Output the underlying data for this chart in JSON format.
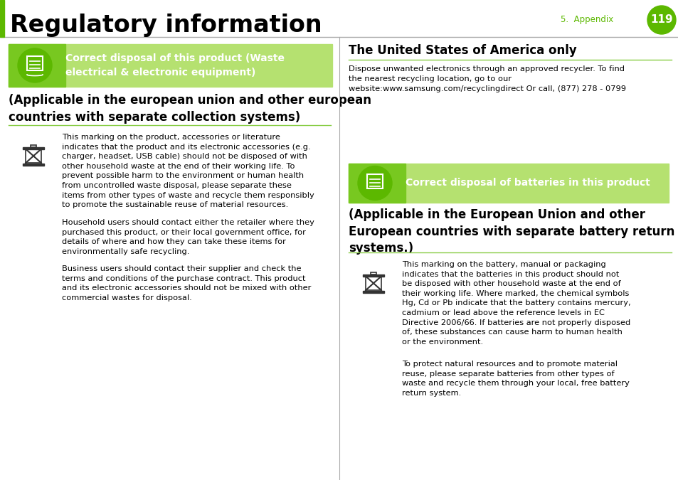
{
  "bg_color": "#ffffff",
  "green_dark": "#5cb800",
  "green_light": "#b5e170",
  "green_banner_grad_left": "#7dc832",
  "page_label": "5.  Appendix",
  "page_number": "119",
  "title": "Regulatory information",
  "left_banner_title": "Correct disposal of this product (Waste\nelectrical & electronic equipment)",
  "left_section_subtitle": "(Applicable in the european union and other european\ncountries with separate collection systems)",
  "left_para1": "This marking on the product, accessories or literature\nindicates that the product and its electronic accessories (e.g.\ncharger, headset, USB cable) should not be disposed of with\nother household waste at the end of their working life. To\nprevent possible harm to the environment or human health\nfrom uncontrolled waste disposal, please separate these\nitems from other types of waste and recycle them responsibly\nto promote the sustainable reuse of material resources.",
  "left_para2": "Household users should contact either the retailer where they\npurchased this product, or their local government office, for\ndetails of where and how they can take these items for\nenvironmentally safe recycling.",
  "left_para3": "Business users should contact their supplier and check the\nterms and conditions of the purchase contract. This product\nand its electronic accessories should not be mixed with other\ncommercial wastes for disposal.",
  "right_usa_title": "The United States of America only",
  "right_usa_text": "Dispose unwanted electronics through an approved recycler. To find\nthe nearest recycling location, go to our\nwebsite:www.samsung.com/recyclingdirect Or call, (877) 278 - 0799",
  "right_banner_title": "Correct disposal of batteries in this product",
  "right_section_subtitle": "(Applicable in the European Union and other\nEuropean countries with separate battery return\nsystems.)",
  "right_para1": "This marking on the battery, manual or packaging\nindicates that the batteries in this product should not\nbe disposed with other household waste at the end of\ntheir working life. Where marked, the chemical symbols\nHg, Cd or Pb indicate that the battery contains mercury,\ncadmium or lead above the reference levels in EC\nDirective 2006/66. If batteries are not properly disposed\nof, these substances can cause harm to human health\nor the environment.",
  "right_para2": "To protect natural resources and to promote material\nreuse, please separate batteries from other types of\nwaste and recycle them through your local, free battery\nreturn system."
}
